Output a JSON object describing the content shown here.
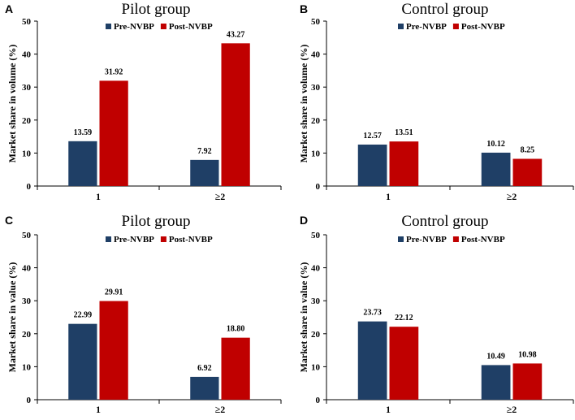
{
  "colors": {
    "pre": "#1f3f66",
    "post": "#c00000"
  },
  "chart_data": [
    {
      "type": "bar",
      "panel": "A",
      "title": "Pilot group",
      "ylabel": "Market share in volume (%)",
      "xlabel": "",
      "categories": [
        "1",
        "≥2"
      ],
      "ylim": [
        0,
        50
      ],
      "yticks": [
        "0",
        "10",
        "20",
        "30",
        "40",
        "50"
      ],
      "legend_position": "top-center",
      "series": [
        {
          "name": "Pre-NVBP",
          "values": [
            13.59,
            7.92
          ],
          "labels": [
            "13.59",
            "7.92"
          ]
        },
        {
          "name": "Post-NVBP",
          "values": [
            31.92,
            43.27
          ],
          "labels": [
            "31.92",
            "43.27"
          ]
        }
      ]
    },
    {
      "type": "bar",
      "panel": "B",
      "title": "Control group",
      "ylabel": "Market share in volume (%)",
      "xlabel": "",
      "categories": [
        "1",
        "≥2"
      ],
      "ylim": [
        0,
        50
      ],
      "yticks": [
        "0",
        "10",
        "20",
        "30",
        "40",
        "50"
      ],
      "legend_position": "top-center",
      "series": [
        {
          "name": "Pre-NVBP",
          "values": [
            12.57,
            10.12
          ],
          "labels": [
            "12.57",
            "10.12"
          ]
        },
        {
          "name": "Post-NVBP",
          "values": [
            13.51,
            8.25
          ],
          "labels": [
            "13.51",
            "8.25"
          ]
        }
      ]
    },
    {
      "type": "bar",
      "panel": "C",
      "title": "Pilot group",
      "ylabel": "Market share in value (%)",
      "xlabel": "",
      "categories": [
        "1",
        "≥2"
      ],
      "ylim": [
        0,
        50
      ],
      "yticks": [
        "0",
        "10",
        "20",
        "30",
        "40",
        "50"
      ],
      "legend_position": "top-center",
      "series": [
        {
          "name": "Pre-NVBP",
          "values": [
            22.99,
            6.92
          ],
          "labels": [
            "22.99",
            "6.92"
          ]
        },
        {
          "name": "Post-NVBP",
          "values": [
            29.91,
            18.8
          ],
          "labels": [
            "29.91",
            "18.80"
          ]
        }
      ]
    },
    {
      "type": "bar",
      "panel": "D",
      "title": "Control group",
      "ylabel": "Market share in value (%)",
      "xlabel": "",
      "categories": [
        "1",
        "≥2"
      ],
      "ylim": [
        0,
        50
      ],
      "yticks": [
        "0",
        "10",
        "20",
        "30",
        "40",
        "50"
      ],
      "legend_position": "top-center",
      "series": [
        {
          "name": "Pre-NVBP",
          "values": [
            23.73,
            10.49
          ],
          "labels": [
            "23.73",
            "10.49"
          ]
        },
        {
          "name": "Post-NVBP",
          "values": [
            22.12,
            10.98
          ],
          "labels": [
            "22.12",
            "10.98"
          ]
        }
      ]
    }
  ]
}
